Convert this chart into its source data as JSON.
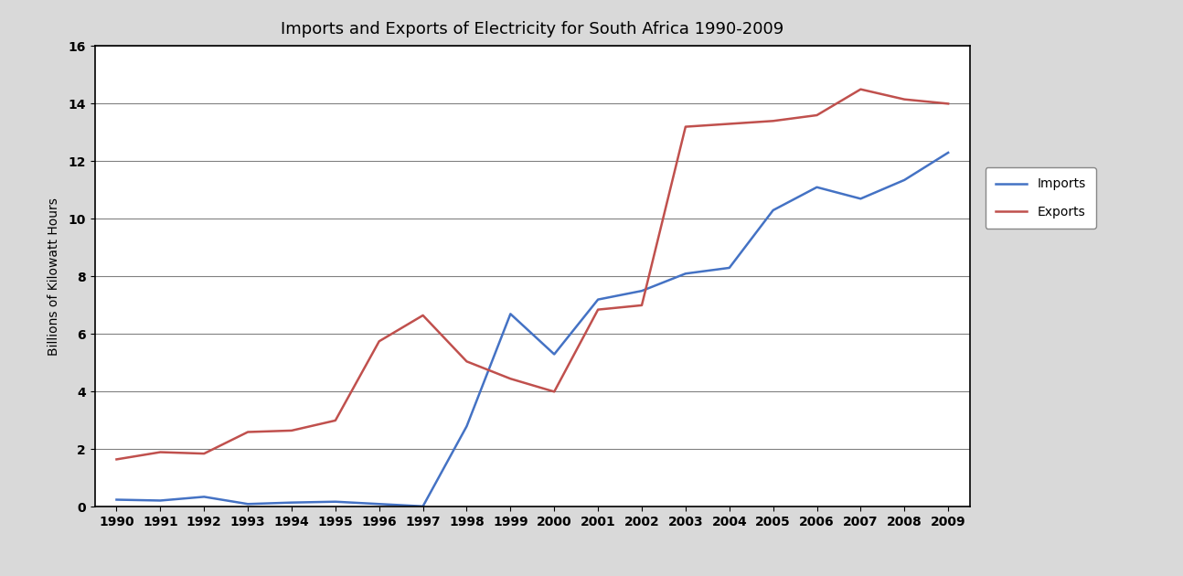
{
  "years": [
    1990,
    1991,
    1992,
    1993,
    1994,
    1995,
    1996,
    1997,
    1998,
    1999,
    2000,
    2001,
    2002,
    2003,
    2004,
    2005,
    2006,
    2007,
    2008,
    2009
  ],
  "imports": [
    0.25,
    0.22,
    0.35,
    0.1,
    0.15,
    0.18,
    0.1,
    0.02,
    2.8,
    6.7,
    5.3,
    7.2,
    7.5,
    8.1,
    8.3,
    10.3,
    11.1,
    10.7,
    11.35,
    12.3
  ],
  "exports": [
    1.65,
    1.9,
    1.85,
    2.6,
    2.65,
    3.0,
    5.75,
    6.65,
    5.05,
    4.45,
    4.0,
    6.85,
    7.0,
    13.2,
    13.3,
    13.4,
    13.6,
    14.5,
    14.15,
    14.0
  ],
  "title": "Imports and Exports of Electricity for South Africa 1990-2009",
  "ylabel": "Billions of Kilowatt Hours",
  "imports_color": "#4472C4",
  "exports_color": "#C0504D",
  "ylim_min": 0,
  "ylim_max": 16,
  "yticks": [
    0,
    2,
    4,
    6,
    8,
    10,
    12,
    14,
    16
  ],
  "legend_imports": "Imports",
  "legend_exports": "Exports",
  "plot_bg_color": "#FFFFFF",
  "fig_bg_color": "#D9D9D9",
  "grid_color": "#808080",
  "border_color": "#000000"
}
